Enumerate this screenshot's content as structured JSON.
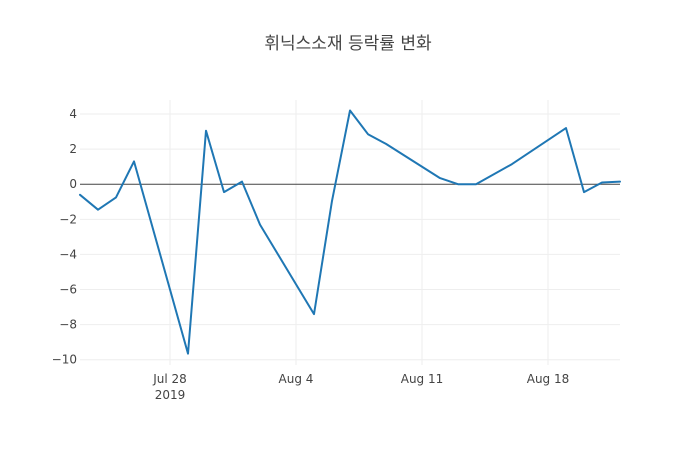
{
  "chart_data": {
    "type": "line",
    "title": "휘닉스소재 등락률 변화",
    "xlabel": "",
    "ylabel": "",
    "x_range": [
      "2019-07-23",
      "2019-08-22"
    ],
    "ylim": [
      -10.3,
      4.8
    ],
    "grid": true,
    "legend": "none",
    "x_ticks": [
      {
        "date": "2019-07-28",
        "label": "Jul 28",
        "sublabel": "2019"
      },
      {
        "date": "2019-08-04",
        "label": "Aug 4",
        "sublabel": ""
      },
      {
        "date": "2019-08-11",
        "label": "Aug 11",
        "sublabel": ""
      },
      {
        "date": "2019-08-18",
        "label": "Aug 18",
        "sublabel": ""
      }
    ],
    "y_ticks": [
      {
        "value": 4,
        "label": "4"
      },
      {
        "value": 2,
        "label": "2"
      },
      {
        "value": 0,
        "label": "0"
      },
      {
        "value": -2,
        "label": "−2"
      },
      {
        "value": -4,
        "label": "−4"
      },
      {
        "value": -6,
        "label": "−6"
      },
      {
        "value": -8,
        "label": "−8"
      },
      {
        "value": -10,
        "label": "−10"
      }
    ],
    "series": [
      {
        "color": "#1f77b4",
        "x": [
          "2019-07-23",
          "2019-07-24",
          "2019-07-25",
          "2019-07-26",
          "2019-07-29",
          "2019-07-30",
          "2019-07-31",
          "2019-08-01",
          "2019-08-02",
          "2019-08-05",
          "2019-08-06",
          "2019-08-07",
          "2019-08-08",
          "2019-08-09",
          "2019-08-12",
          "2019-08-13",
          "2019-08-14",
          "2019-08-16",
          "2019-08-19",
          "2019-08-20",
          "2019-08-21",
          "2019-08-22"
        ],
        "y": [
          -0.6,
          -1.45,
          -0.75,
          1.3,
          -9.65,
          3.05,
          -0.45,
          0.15,
          -2.3,
          -7.4,
          -0.95,
          4.2,
          2.85,
          2.3,
          0.35,
          0.0,
          0.0,
          1.15,
          3.2,
          -0.45,
          0.1,
          0.15
        ]
      }
    ]
  }
}
